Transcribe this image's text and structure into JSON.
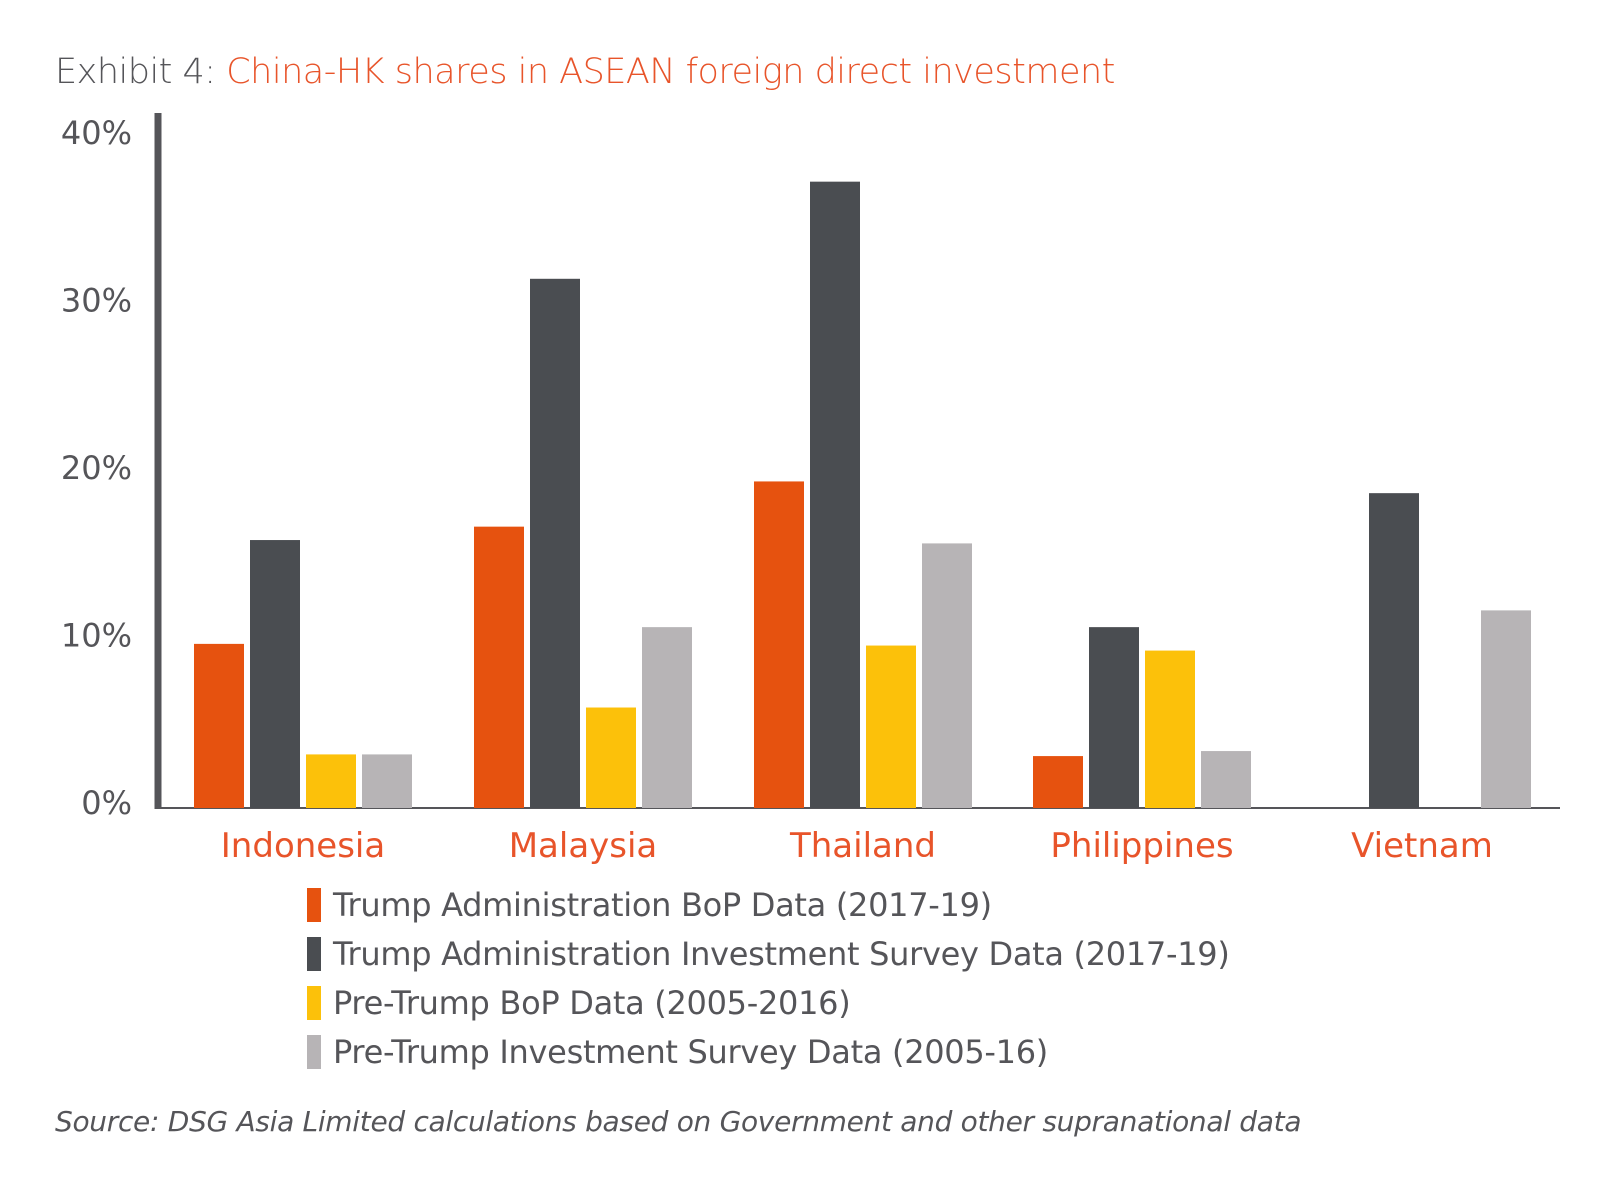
{
  "title": {
    "prefix": "Exhibit 4: ",
    "main": "China-HK shares in ASEAN foreign direct investment"
  },
  "colors": {
    "accent": "#e8542a",
    "text": "#555559",
    "axis": "#555559"
  },
  "chart_data": {
    "type": "bar",
    "categories": [
      "Indonesia",
      "Malaysia",
      "Thailand",
      "Philippines",
      "Vietnam"
    ],
    "y_ticks": [
      "0%",
      "10%",
      "20%",
      "30%",
      "40%"
    ],
    "ylim": [
      0,
      41.5
    ],
    "grid": false,
    "legend_position": "bottom",
    "series": [
      {
        "name": "Trump Administration BoP Data (2017-19)",
        "color": "#e6520f",
        "values": [
          9.8,
          16.8,
          19.5,
          3.1,
          null
        ]
      },
      {
        "name": "Trump Administration Investment Survey Data  (2017-19)",
        "color": "#4a4d51",
        "values": [
          16.0,
          31.6,
          37.4,
          10.8,
          18.8
        ]
      },
      {
        "name": "Pre-Trump BoP Data (2005-2016)",
        "color": "#fcc10a",
        "values": [
          3.2,
          6.0,
          9.7,
          9.4,
          null
        ]
      },
      {
        "name": "Pre-Trump Investment Survey Data (2005-16)",
        "color": "#b7b4b6",
        "values": [
          3.2,
          10.8,
          15.8,
          3.4,
          11.8
        ]
      }
    ]
  },
  "source": "Source: DSG Asia Limited calculations based on Government and other supranational data"
}
